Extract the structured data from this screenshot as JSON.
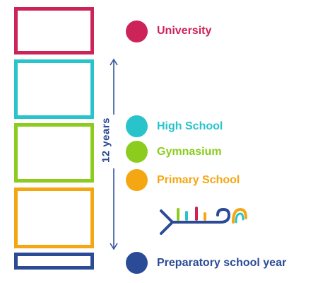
{
  "colors": {
    "university": "#cc2358",
    "high_school": "#29c3cc",
    "gymnasium": "#8bcc1e",
    "primary_school": "#f5a713",
    "preparatory": "#2b4b96",
    "axis": "#2b4b96"
  },
  "levels": {
    "university": {
      "label": "University"
    },
    "high_school": {
      "label": "High School"
    },
    "gymnasium": {
      "label": "Gymnasium"
    },
    "primary_school": {
      "label": "Primary School"
    },
    "preparatory": {
      "label": "Preparatory school year"
    }
  },
  "span": {
    "label": "12 years"
  },
  "logo": {
    "icon": "abstract-logo-icon"
  }
}
